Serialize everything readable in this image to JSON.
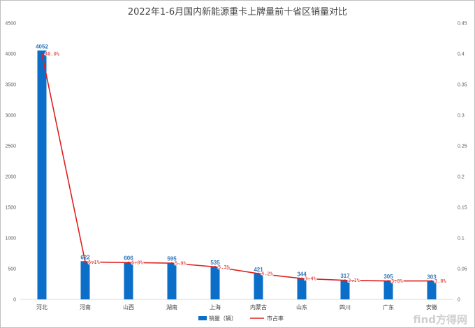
{
  "chart_data": {
    "type": "bar",
    "title": "2022年1-6月国内新能源重卡上牌量前十省区销量对比",
    "categories": [
      "河北",
      "河南",
      "山西",
      "湖南",
      "上海",
      "内蒙古",
      "山东",
      "四川",
      "广东",
      "安徽"
    ],
    "series": [
      {
        "name": "销量（辆）",
        "type": "bar",
        "axis": "left",
        "color": "#0b6fc9",
        "values": [
          4052,
          622,
          606,
          595,
          535,
          421,
          344,
          317,
          305,
          303
        ]
      },
      {
        "name": "市占率",
        "type": "line",
        "axis": "right",
        "color": "#e02020",
        "values": [
          0.4,
          0.061,
          0.06,
          0.059,
          0.053,
          0.042,
          0.034,
          0.031,
          0.03,
          0.03
        ],
        "labels": [
          "40.0%",
          "6.1%",
          "6.0%",
          "5.9%",
          "5.3%",
          "4.2%",
          "3.4%",
          "3.1%",
          "3.0%",
          "3.0%"
        ]
      }
    ],
    "y_left": {
      "min": 0,
      "max": 4500,
      "step": 500,
      "ticks": [
        "0",
        "500",
        "1000",
        "1500",
        "2000",
        "2500",
        "3000",
        "3500",
        "4000",
        "4500"
      ]
    },
    "y_right": {
      "min": 0,
      "max": 0.45,
      "step": 0.05,
      "ticks": [
        "0",
        "0.05",
        "0.1",
        "0.15",
        "0.2",
        "0.25",
        "0.3",
        "0.35",
        "0.4",
        "0.45"
      ]
    },
    "grid": false,
    "legend": "bottom"
  },
  "watermark": "find方得网"
}
